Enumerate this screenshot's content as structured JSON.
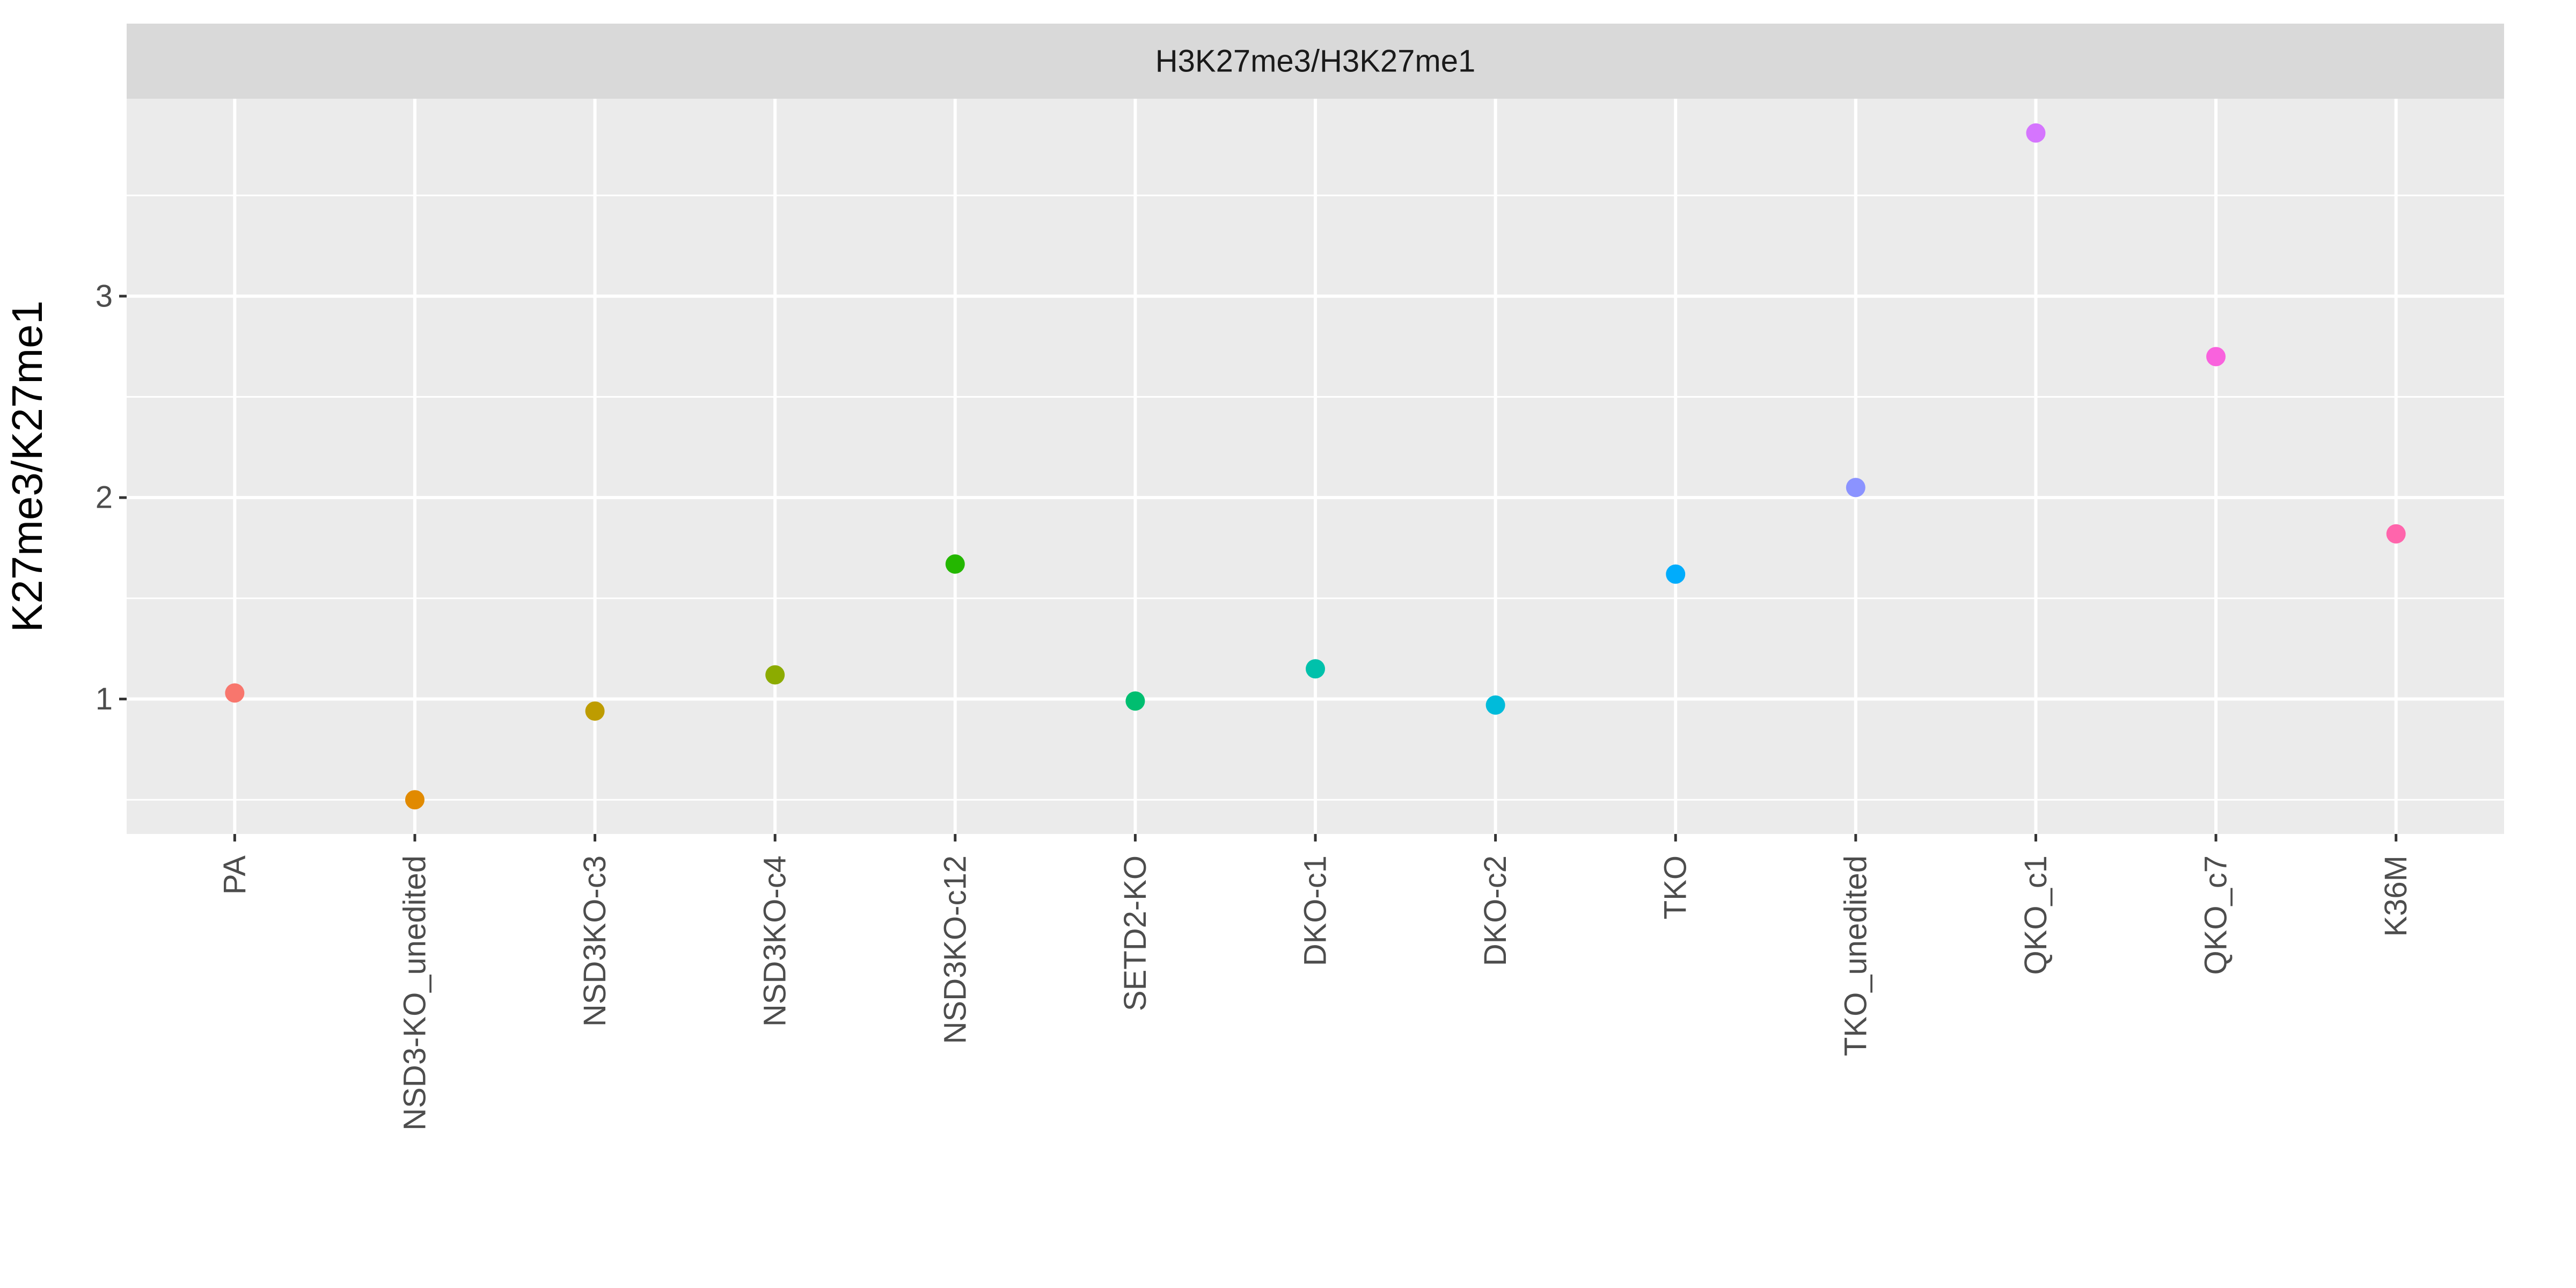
{
  "chart_data": {
    "type": "scatter",
    "facet_label": "H3K27me3/H3K27me1",
    "xlabel": "",
    "ylabel": "K27me3/K27me1",
    "ylim": [
      0.33,
      3.98
    ],
    "y_ticks": [
      1,
      2,
      3
    ],
    "grid": true,
    "legend": "none",
    "categories": [
      "PA",
      "NSD3-KO_unedited",
      "NSD3KO-c3",
      "NSD3KO-c4",
      "NSD3KO-c12",
      "SETD2-KO",
      "DKO-c1",
      "DKO-c2",
      "TKO",
      "TKO_unedited",
      "QKO_c1",
      "QKO_c7",
      "K36M"
    ],
    "values": [
      1.03,
      0.5,
      0.94,
      1.12,
      1.67,
      0.99,
      1.15,
      0.97,
      1.62,
      2.05,
      3.81,
      2.7,
      1.82
    ],
    "colors": [
      "#F8766D",
      "#E18A00",
      "#BE9C00",
      "#8CAB00",
      "#24B700",
      "#00BE70",
      "#00C1AB",
      "#00BBDA",
      "#00ACFC",
      "#8B93FF",
      "#D575FE",
      "#F962DD",
      "#FF65AC"
    ]
  }
}
